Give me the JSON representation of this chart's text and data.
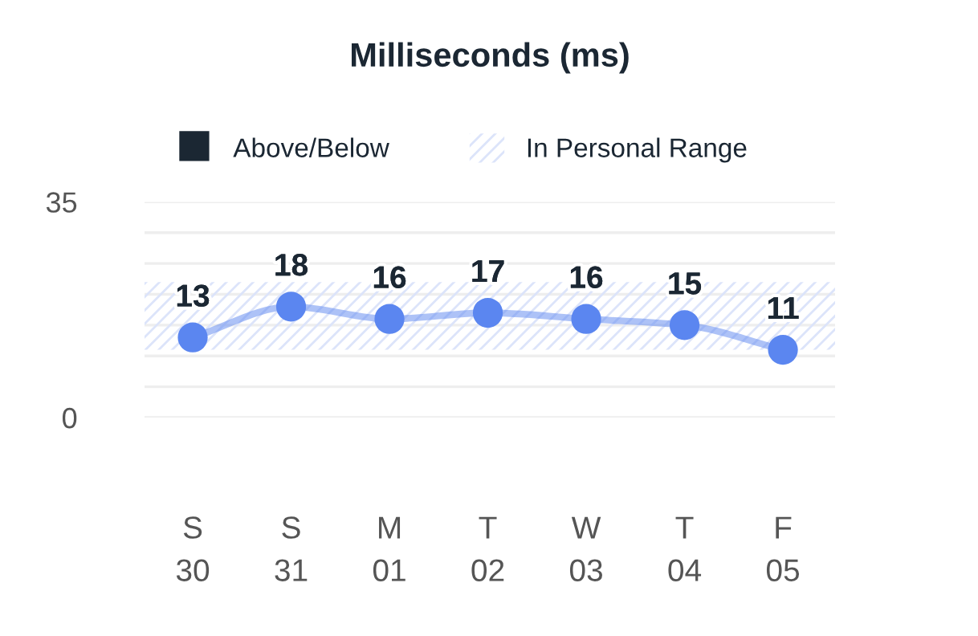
{
  "chart_data": {
    "type": "line",
    "title": "Milliseconds (ms)",
    "categories": [
      "S\n30",
      "S\n31",
      "M\n01",
      "T\n02",
      "W\n03",
      "T\n04",
      "F\n05"
    ],
    "series": [
      {
        "color": "#5b86f0",
        "values": [
          13,
          18,
          16,
          17,
          16,
          15,
          11
        ]
      },
      {
        "name": "Above/Below",
        "type": "scatter",
        "color": "#1b2733",
        "values": [
          null,
          null,
          null,
          null,
          null,
          null,
          null
        ]
      }
    ],
    "bands": [
      {
        "axis": "y",
        "from": 11,
        "to": 22,
        "label": "In Personal Range",
        "color": "#dce4fa"
      }
    ],
    "ylim": [
      0,
      35
    ],
    "yticks": [
      0,
      {
        "value": 5,
        "label": null
      },
      {
        "value": 10,
        "label": null
      },
      {
        "value": 15,
        "label": null
      },
      {
        "value": 20,
        "label": null
      },
      {
        "value": 25,
        "label": null
      },
      {
        "value": 30,
        "label": null
      },
      35
    ],
    "grid": "y",
    "legend": "top",
    "marker": "circle",
    "data_labels": true
  }
}
